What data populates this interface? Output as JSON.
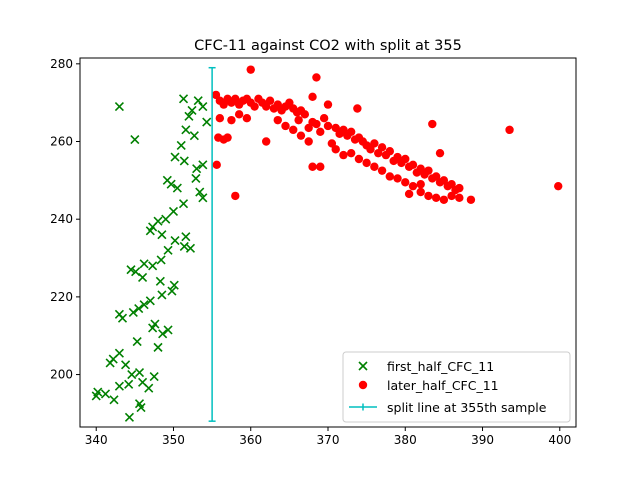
{
  "chart_data": {
    "type": "scatter",
    "title": "CFC-11 against CO2 with split at 355",
    "xlabel": "",
    "ylabel": "",
    "xlim": [
      337.9,
      402.1
    ],
    "ylim": [
      186.5,
      281.5
    ],
    "xticks": [
      340,
      350,
      360,
      370,
      380,
      390,
      400
    ],
    "yticks": [
      200,
      220,
      240,
      260,
      280
    ],
    "grid": false,
    "legend_position": "lower-right",
    "series": [
      {
        "name": "first_half_CFC_11",
        "marker": "x",
        "color": "#008000",
        "points": [
          [
            343.0,
            269.0
          ],
          [
            345.0,
            260.5
          ],
          [
            351.3,
            271.0
          ],
          [
            353.2,
            270.5
          ],
          [
            352.4,
            268.0
          ],
          [
            353.8,
            269.0
          ],
          [
            352.0,
            266.5
          ],
          [
            354.3,
            265.0
          ],
          [
            351.6,
            263.0
          ],
          [
            352.7,
            261.5
          ],
          [
            351.0,
            259.0
          ],
          [
            350.2,
            256.0
          ],
          [
            351.4,
            255.0
          ],
          [
            353.0,
            253.0
          ],
          [
            353.8,
            254.0
          ],
          [
            352.9,
            250.5
          ],
          [
            349.2,
            250.0
          ],
          [
            349.7,
            249.0
          ],
          [
            350.5,
            248.0
          ],
          [
            353.4,
            247.0
          ],
          [
            353.8,
            245.5
          ],
          [
            351.3,
            244.0
          ],
          [
            350.0,
            242.0
          ],
          [
            349.0,
            240.0
          ],
          [
            348.0,
            239.5
          ],
          [
            347.3,
            238.0
          ],
          [
            347.0,
            237.0
          ],
          [
            348.5,
            236.0
          ],
          [
            350.2,
            234.5
          ],
          [
            351.4,
            233.0
          ],
          [
            352.2,
            232.5
          ],
          [
            349.3,
            232.0
          ],
          [
            351.6,
            235.5
          ],
          [
            348.4,
            229.5
          ],
          [
            346.2,
            228.5
          ],
          [
            347.3,
            228.0
          ],
          [
            344.5,
            227.0
          ],
          [
            345.1,
            226.5
          ],
          [
            346.0,
            225.0
          ],
          [
            348.3,
            224.0
          ],
          [
            350.1,
            223.0
          ],
          [
            349.8,
            221.5
          ],
          [
            348.5,
            220.5
          ],
          [
            347.0,
            219.0
          ],
          [
            346.2,
            218.0
          ],
          [
            345.5,
            217.0
          ],
          [
            344.8,
            216.0
          ],
          [
            343.0,
            215.5
          ],
          [
            343.4,
            214.5
          ],
          [
            347.6,
            213.0
          ],
          [
            347.3,
            212.0
          ],
          [
            349.3,
            211.5
          ],
          [
            348.6,
            210.5
          ],
          [
            345.3,
            208.5
          ],
          [
            348.0,
            207.0
          ],
          [
            343.0,
            205.5
          ],
          [
            342.2,
            204.0
          ],
          [
            341.8,
            203.0
          ],
          [
            343.8,
            202.5
          ],
          [
            344.6,
            200.0
          ],
          [
            345.6,
            200.5
          ],
          [
            347.5,
            199.5
          ],
          [
            346.0,
            198.0
          ],
          [
            344.2,
            197.5
          ],
          [
            343.0,
            197.0
          ],
          [
            346.8,
            196.5
          ],
          [
            340.2,
            195.5
          ],
          [
            341.2,
            195.0
          ],
          [
            340.0,
            194.5
          ],
          [
            342.3,
            193.5
          ],
          [
            345.6,
            192.5
          ],
          [
            345.8,
            191.5
          ],
          [
            344.3,
            189.0
          ]
        ]
      },
      {
        "name": "later_half_CFC_11",
        "marker": "o",
        "color": "#ff0000",
        "points": [
          [
            355.5,
            272.0
          ],
          [
            356.0,
            270.5
          ],
          [
            356.5,
            269.5
          ],
          [
            357.0,
            271.0
          ],
          [
            357.5,
            270.0
          ],
          [
            358.0,
            271.0
          ],
          [
            358.5,
            269.5
          ],
          [
            359.0,
            270.5
          ],
          [
            359.5,
            271.0
          ],
          [
            360.0,
            270.0
          ],
          [
            360.5,
            269.0
          ],
          [
            361.0,
            271.0
          ],
          [
            361.5,
            270.0
          ],
          [
            362.0,
            269.0
          ],
          [
            362.5,
            270.5
          ],
          [
            363.0,
            268.5
          ],
          [
            363.5,
            269.5
          ],
          [
            364.0,
            268.0
          ],
          [
            364.5,
            269.0
          ],
          [
            365.0,
            270.0
          ],
          [
            365.5,
            268.5
          ],
          [
            366.0,
            267.5
          ],
          [
            366.5,
            268.0
          ],
          [
            367.0,
            267.0
          ],
          [
            360.0,
            278.5
          ],
          [
            368.5,
            276.5
          ],
          [
            356.0,
            266.0
          ],
          [
            357.5,
            265.5
          ],
          [
            355.8,
            261.0
          ],
          [
            356.5,
            260.5
          ],
          [
            358.5,
            267.0
          ],
          [
            359.5,
            266.0
          ],
          [
            363.5,
            265.5
          ],
          [
            364.5,
            264.0
          ],
          [
            365.5,
            263.0
          ],
          [
            366.2,
            265.5
          ],
          [
            367.5,
            263.5
          ],
          [
            368.0,
            265.0
          ],
          [
            368.5,
            264.5
          ],
          [
            369.0,
            262.5
          ],
          [
            369.5,
            266.0
          ],
          [
            370.0,
            264.0
          ],
          [
            368.0,
            271.5
          ],
          [
            370.0,
            269.5
          ],
          [
            373.8,
            268.5
          ],
          [
            371.0,
            263.5
          ],
          [
            371.5,
            262.0
          ],
          [
            372.0,
            263.0
          ],
          [
            372.5,
            261.5
          ],
          [
            373.0,
            262.5
          ],
          [
            373.5,
            260.5
          ],
          [
            374.0,
            261.0
          ],
          [
            374.5,
            260.0
          ],
          [
            375.0,
            259.0
          ],
          [
            375.5,
            258.0
          ],
          [
            376.0,
            259.5
          ],
          [
            376.5,
            257.0
          ],
          [
            377.0,
            258.5
          ],
          [
            377.5,
            256.5
          ],
          [
            378.0,
            257.5
          ],
          [
            378.5,
            255.0
          ],
          [
            379.0,
            256.0
          ],
          [
            379.5,
            254.5
          ],
          [
            380.0,
            255.5
          ],
          [
            380.5,
            253.5
          ],
          [
            381.0,
            254.0
          ],
          [
            381.5,
            252.0
          ],
          [
            382.0,
            253.0
          ],
          [
            382.5,
            251.5
          ],
          [
            383.0,
            252.5
          ],
          [
            383.5,
            250.5
          ],
          [
            384.0,
            251.0
          ],
          [
            384.5,
            249.5
          ],
          [
            385.0,
            250.0
          ],
          [
            385.5,
            248.5
          ],
          [
            386.0,
            249.0
          ],
          [
            386.5,
            247.5
          ],
          [
            387.0,
            248.0
          ],
          [
            371.0,
            258.0
          ],
          [
            372.0,
            256.5
          ],
          [
            373.0,
            257.0
          ],
          [
            374.0,
            255.5
          ],
          [
            375.0,
            254.5
          ],
          [
            376.0,
            253.5
          ],
          [
            377.0,
            252.5
          ],
          [
            378.0,
            251.0
          ],
          [
            379.0,
            250.5
          ],
          [
            380.0,
            249.5
          ],
          [
            381.0,
            248.5
          ],
          [
            382.0,
            247.0
          ],
          [
            383.0,
            246.0
          ],
          [
            384.0,
            245.5
          ],
          [
            385.0,
            245.0
          ],
          [
            386.0,
            246.0
          ],
          [
            387.0,
            245.5
          ],
          [
            388.5,
            245.0
          ],
          [
            368.0,
            253.5
          ],
          [
            369.0,
            253.5
          ],
          [
            362.0,
            260.0
          ],
          [
            383.5,
            264.5
          ],
          [
            384.5,
            257.0
          ],
          [
            393.5,
            263.0
          ],
          [
            399.8,
            248.5
          ],
          [
            358.0,
            246.0
          ],
          [
            355.6,
            254.0
          ],
          [
            357.0,
            261.0
          ],
          [
            366.5,
            261.5
          ],
          [
            367.5,
            260.0
          ],
          [
            370.5,
            259.5
          ],
          [
            380.5,
            246.5
          ],
          [
            382.0,
            249.0
          ]
        ]
      },
      {
        "name": "split line at 355th sample",
        "marker": "|",
        "color": "#00bfbf",
        "points": [
          [
            355.0,
            188.0
          ],
          [
            355.0,
            279.0
          ]
        ]
      }
    ]
  }
}
